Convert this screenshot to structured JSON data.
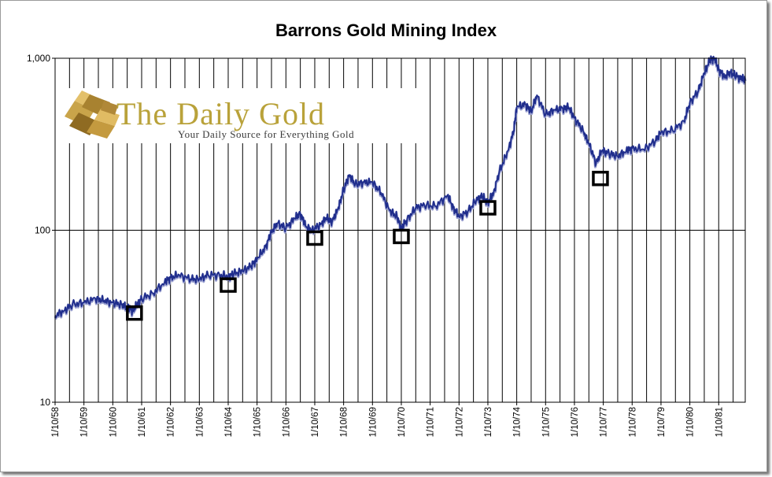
{
  "chart_data": {
    "type": "line",
    "title": "Barrons Gold Mining Index",
    "scale": "log",
    "ylim": [
      10,
      1000
    ],
    "yticks": [
      {
        "value": 10,
        "label": "10"
      },
      {
        "value": 100,
        "label": "100"
      },
      {
        "value": 1000,
        "label": "1,000"
      }
    ],
    "xlim": [
      1958.0,
      1981.92
    ],
    "xticks": [
      "1/10/58",
      "1/10/59",
      "1/10/60",
      "1/10/61",
      "1/10/62",
      "1/10/63",
      "1/10/64",
      "1/10/65",
      "1/10/66",
      "1/10/67",
      "1/10/68",
      "1/10/69",
      "1/10/70",
      "1/10/71",
      "1/10/72",
      "1/10/73",
      "1/10/74",
      "1/10/75",
      "1/10/76",
      "1/10/77",
      "1/10/78",
      "1/10/79",
      "1/10/80",
      "1/10/81"
    ],
    "vertical_grid_per_year": 2,
    "horizontal_grid": [
      100
    ],
    "line_color": "#1f2d8c",
    "series": [
      {
        "points": [
          [
            1958.0,
            32
          ],
          [
            1958.3,
            34
          ],
          [
            1958.6,
            37
          ],
          [
            1959.0,
            38
          ],
          [
            1959.4,
            40
          ],
          [
            1959.7,
            39
          ],
          [
            1960.0,
            38
          ],
          [
            1960.3,
            37
          ],
          [
            1960.5,
            36
          ],
          [
            1960.68,
            34
          ],
          [
            1960.85,
            37
          ],
          [
            1961.0,
            40
          ],
          [
            1961.4,
            43
          ],
          [
            1961.8,
            50
          ],
          [
            1962.0,
            53
          ],
          [
            1962.3,
            55
          ],
          [
            1962.7,
            52
          ],
          [
            1963.0,
            52
          ],
          [
            1963.3,
            55
          ],
          [
            1963.7,
            55
          ],
          [
            1964.0,
            54
          ],
          [
            1964.2,
            56
          ],
          [
            1964.5,
            58
          ],
          [
            1964.8,
            62
          ],
          [
            1965.0,
            68
          ],
          [
            1965.3,
            80
          ],
          [
            1965.5,
            98
          ],
          [
            1965.7,
            110
          ],
          [
            1966.0,
            103
          ],
          [
            1966.3,
            117
          ],
          [
            1966.5,
            125
          ],
          [
            1966.7,
            105
          ],
          [
            1966.9,
            100
          ],
          [
            1967.2,
            108
          ],
          [
            1967.4,
            118
          ],
          [
            1967.6,
            112
          ],
          [
            1967.8,
            132
          ],
          [
            1968.0,
            172
          ],
          [
            1968.2,
            210
          ],
          [
            1968.4,
            185
          ],
          [
            1968.7,
            190
          ],
          [
            1969.0,
            190
          ],
          [
            1969.3,
            165
          ],
          [
            1969.6,
            130
          ],
          [
            1969.85,
            120
          ],
          [
            1970.0,
            103
          ],
          [
            1970.2,
            115
          ],
          [
            1970.5,
            135
          ],
          [
            1970.8,
            140
          ],
          [
            1971.2,
            138
          ],
          [
            1971.6,
            160
          ],
          [
            1971.8,
            135
          ],
          [
            1972.0,
            120
          ],
          [
            1972.3,
            128
          ],
          [
            1972.6,
            150
          ],
          [
            1972.8,
            158
          ],
          [
            1973.0,
            145
          ],
          [
            1973.2,
            165
          ],
          [
            1973.4,
            220
          ],
          [
            1973.7,
            290
          ],
          [
            1973.9,
            380
          ],
          [
            1974.0,
            520
          ],
          [
            1974.3,
            540
          ],
          [
            1974.5,
            490
          ],
          [
            1974.7,
            610
          ],
          [
            1975.0,
            470
          ],
          [
            1975.3,
            500
          ],
          [
            1975.6,
            510
          ],
          [
            1975.8,
            520
          ],
          [
            1976.0,
            450
          ],
          [
            1976.3,
            380
          ],
          [
            1976.5,
            320
          ],
          [
            1976.75,
            245
          ],
          [
            1976.95,
            290
          ],
          [
            1977.2,
            280
          ],
          [
            1977.5,
            270
          ],
          [
            1977.8,
            290
          ],
          [
            1978.0,
            300
          ],
          [
            1978.4,
            295
          ],
          [
            1978.8,
            330
          ],
          [
            1979.0,
            370
          ],
          [
            1979.4,
            380
          ],
          [
            1979.8,
            430
          ],
          [
            1980.0,
            550
          ],
          [
            1980.3,
            650
          ],
          [
            1980.5,
            820
          ],
          [
            1980.7,
            980
          ],
          [
            1980.85,
            1000
          ],
          [
            1981.0,
            860
          ],
          [
            1981.2,
            780
          ],
          [
            1981.4,
            830
          ],
          [
            1981.6,
            790
          ],
          [
            1981.8,
            760
          ],
          [
            1981.92,
            745
          ]
        ]
      }
    ],
    "annotation_boxes": [
      {
        "x": 1960.75,
        "y": 33
      },
      {
        "x": 1964.0,
        "y": 48
      },
      {
        "x": 1967.0,
        "y": 90
      },
      {
        "x": 1970.0,
        "y": 92
      },
      {
        "x": 1973.0,
        "y": 135
      },
      {
        "x": 1976.9,
        "y": 200
      }
    ]
  },
  "logo": {
    "title": "The Daily Gold",
    "tagline": "Your Daily Source for Everything Gold"
  },
  "colors": {
    "logo_gold": "#b9a23a",
    "grid": "#000000",
    "line": "#1f2d8c",
    "line_shadow": "#9aa0d0"
  }
}
